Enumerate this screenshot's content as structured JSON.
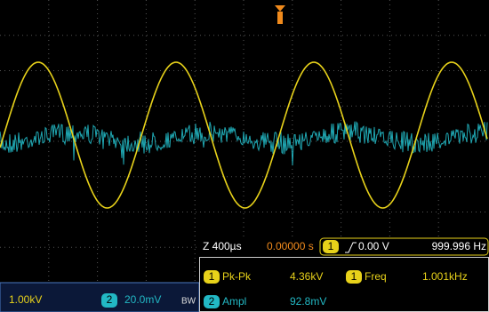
{
  "timebase": {
    "scale": "Z 400µs",
    "delay": "0.00000 s"
  },
  "trigger": {
    "channel": "1",
    "level": "0.00 V",
    "frequency": "999.996 Hz"
  },
  "measurements": [
    {
      "channel": "1",
      "name": "Pk-Pk",
      "value": "4.36kV"
    },
    {
      "channel": "1",
      "name": "Freq",
      "value": "1.001kHz"
    },
    {
      "channel": "2",
      "name": "Ampl",
      "value": "92.8mV"
    }
  ],
  "channels": [
    {
      "scale": "1.00kV"
    },
    {
      "number": "2",
      "scale": "20.0mV",
      "bandwidth": "BW"
    }
  ]
}
